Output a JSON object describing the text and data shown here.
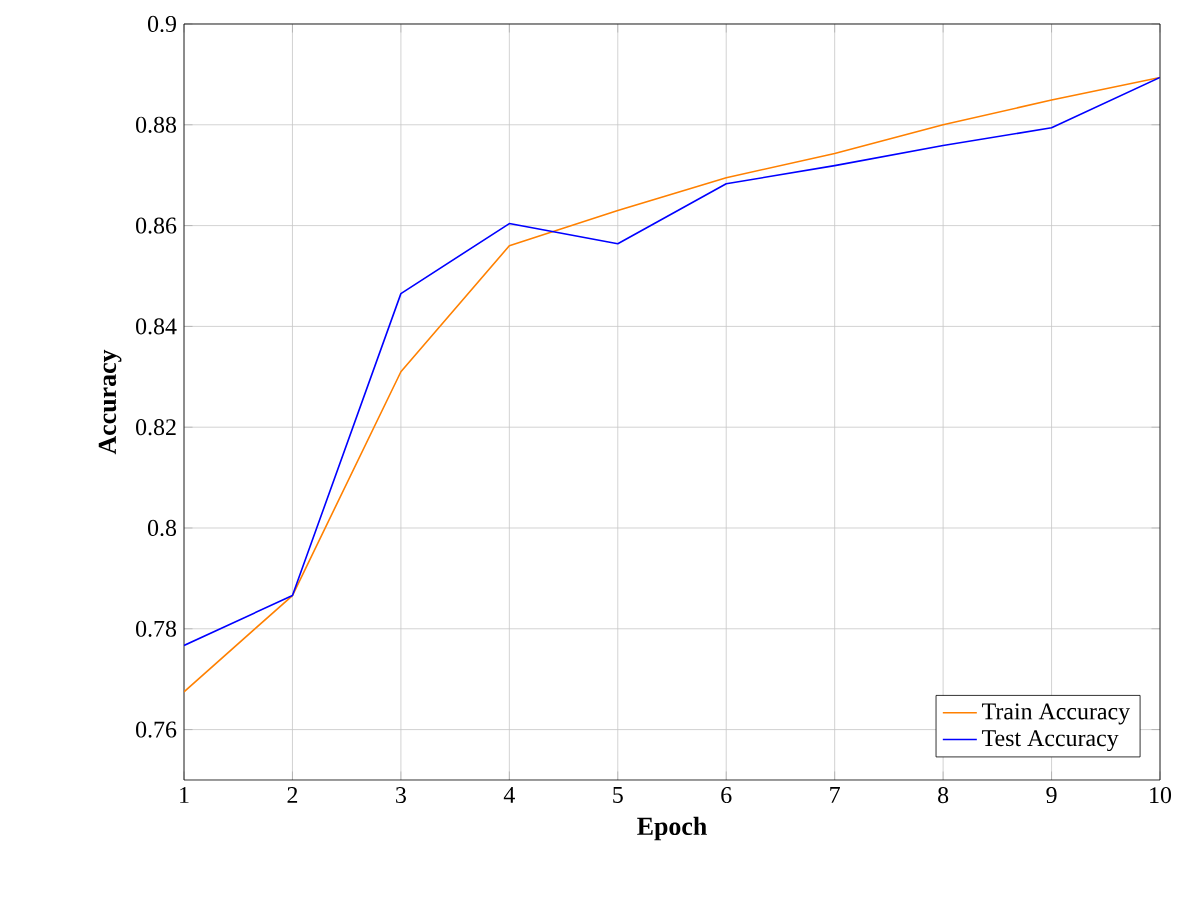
{
  "chart_data": {
    "type": "line",
    "xlabel": "Epoch",
    "ylabel": "Accuracy",
    "x": [
      1,
      2,
      3,
      4,
      5,
      6,
      7,
      8,
      9,
      10
    ],
    "xlim": [
      1,
      10
    ],
    "ylim": [
      0.75,
      0.9
    ],
    "xticks": [
      1,
      2,
      3,
      4,
      5,
      6,
      7,
      8,
      9,
      10
    ],
    "yticks": [
      0.76,
      0.78,
      0.8,
      0.82,
      0.84,
      0.86,
      0.88,
      0.9
    ],
    "grid": true,
    "legend": "bottom right",
    "series": [
      {
        "name": "Train Accuracy",
        "color": "#ff8000",
        "values": [
          0.7675,
          0.7866,
          0.831,
          0.856,
          0.863,
          0.8695,
          0.8743,
          0.88,
          0.8849,
          0.8894
        ]
      },
      {
        "name": "Test Accuracy",
        "color": "#0000ff",
        "values": [
          0.7767,
          0.7866,
          0.8465,
          0.8604,
          0.8564,
          0.8683,
          0.8719,
          0.8759,
          0.8794,
          0.8894
        ]
      }
    ]
  }
}
